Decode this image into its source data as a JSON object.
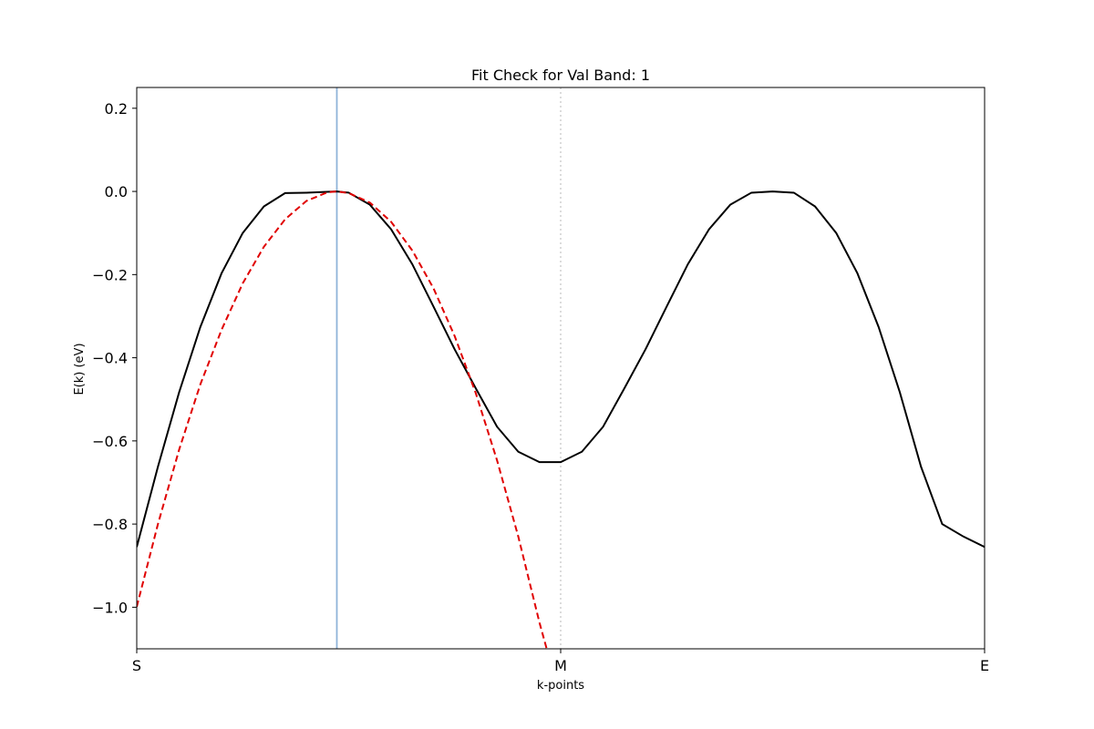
{
  "chart_data": {
    "type": "line",
    "title": "Fit Check for Val Band: 1",
    "xlabel": "k-points",
    "ylabel": "E(k) (eV)",
    "xlim": [
      0,
      2
    ],
    "ylim": [
      -1.1,
      0.25
    ],
    "x_ticks": [
      {
        "value": 0,
        "label": "S"
      },
      {
        "value": 1,
        "label": "M"
      },
      {
        "value": 2,
        "label": "E"
      }
    ],
    "y_ticks": [
      {
        "value": 0.2,
        "label": "0.2"
      },
      {
        "value": 0.0,
        "label": "0.0"
      },
      {
        "value": -0.2,
        "label": "−0.2"
      },
      {
        "value": -0.4,
        "label": "−0.4"
      },
      {
        "value": -0.6,
        "label": "−0.6"
      },
      {
        "value": -0.8,
        "label": "−0.8"
      },
      {
        "value": -1.0,
        "label": "−1.0"
      }
    ],
    "grid": false,
    "vertical_lines": [
      {
        "x": 0.472,
        "color": "#8fb3d9",
        "style": "solid"
      },
      {
        "x": 1.0,
        "color": "#c8c8c8",
        "style": "dotted"
      }
    ],
    "series": [
      {
        "style": "solid",
        "color": "#000000",
        "x": [
          0,
          0.05,
          0.1,
          0.15,
          0.2,
          0.25,
          0.3,
          0.35,
          0.4,
          0.45,
          0.472,
          0.5,
          0.55,
          0.6,
          0.65,
          0.7,
          0.75,
          0.8,
          0.85,
          0.9,
          0.95,
          1.0,
          1.05,
          1.1,
          1.15,
          1.2,
          1.25,
          1.3,
          1.35,
          1.4,
          1.45,
          1.5,
          1.55,
          1.6,
          1.65,
          1.7,
          1.75,
          1.8,
          1.85,
          1.9,
          1.95,
          2.0
        ],
        "y": [
          -0.855,
          -0.662,
          -0.483,
          -0.326,
          -0.197,
          -0.1,
          -0.036,
          -0.004,
          -0.003,
          -0.001,
          0.0,
          -0.003,
          -0.032,
          -0.091,
          -0.175,
          -0.277,
          -0.38,
          -0.474,
          -0.566,
          -0.626,
          -0.651,
          -0.651,
          -0.626,
          -0.566,
          -0.474,
          -0.38,
          -0.277,
          -0.175,
          -0.091,
          -0.032,
          -0.003,
          0.0,
          -0.003,
          -0.036,
          -0.1,
          -0.197,
          -0.326,
          -0.483,
          -0.662,
          -0.8,
          -0.83,
          -0.855
        ]
      },
      {
        "style": "dashed",
        "color": "#e00000",
        "x": [
          0,
          0.05,
          0.1,
          0.15,
          0.2,
          0.25,
          0.3,
          0.35,
          0.4,
          0.45,
          0.472,
          0.5,
          0.55,
          0.6,
          0.65,
          0.7,
          0.75,
          0.8,
          0.85,
          0.9,
          0.95,
          0.967
        ],
        "y": [
          -0.999,
          -0.8,
          -0.621,
          -0.464,
          -0.333,
          -0.221,
          -0.133,
          -0.067,
          -0.023,
          -0.002,
          0.0,
          -0.004,
          -0.027,
          -0.073,
          -0.142,
          -0.233,
          -0.348,
          -0.486,
          -0.647,
          -0.83,
          -1.037,
          -1.1
        ]
      }
    ]
  }
}
